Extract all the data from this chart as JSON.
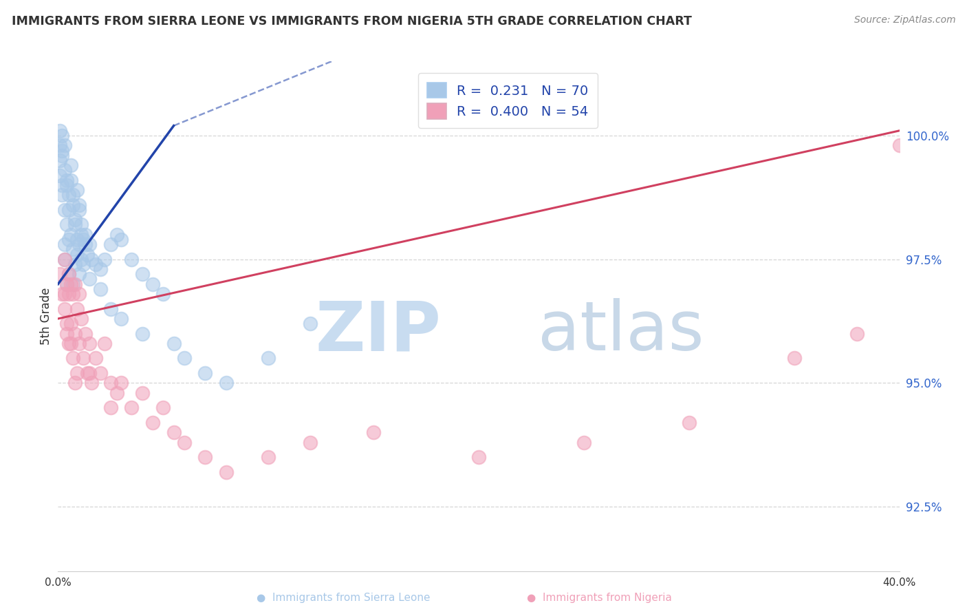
{
  "title": "IMMIGRANTS FROM SIERRA LEONE VS IMMIGRANTS FROM NIGERIA 5TH GRADE CORRELATION CHART",
  "source": "Source: ZipAtlas.com",
  "ylabel": "5th Grade",
  "ytick_values": [
    92.5,
    95.0,
    97.5,
    100.0
  ],
  "xlim": [
    0.0,
    40.0
  ],
  "ylim": [
    91.2,
    101.5
  ],
  "color_blue": "#A8C8E8",
  "color_pink": "#F0A0B8",
  "line_blue": "#2244AA",
  "line_pink": "#D04060",
  "blue_line_x0": 0.0,
  "blue_line_y0": 97.0,
  "blue_line_x1": 5.5,
  "blue_line_y1": 100.2,
  "blue_dash_x1": 13.0,
  "blue_dash_y1": 101.5,
  "pink_line_x0": 0.0,
  "pink_line_y0": 96.3,
  "pink_line_x1": 40.0,
  "pink_line_y1": 100.1,
  "sierra_leone_x": [
    0.1,
    0.1,
    0.1,
    0.2,
    0.2,
    0.2,
    0.2,
    0.3,
    0.3,
    0.3,
    0.3,
    0.4,
    0.4,
    0.4,
    0.5,
    0.5,
    0.5,
    0.6,
    0.6,
    0.7,
    0.7,
    0.7,
    0.8,
    0.8,
    0.9,
    0.9,
    1.0,
    1.0,
    1.0,
    1.1,
    1.1,
    1.2,
    1.3,
    1.4,
    1.5,
    1.6,
    1.8,
    2.0,
    2.2,
    2.5,
    2.8,
    3.0,
    3.5,
    4.0,
    4.5,
    5.0,
    0.1,
    0.2,
    0.3,
    0.4,
    0.5,
    0.6,
    0.7,
    0.8,
    0.9,
    1.0,
    1.1,
    1.2,
    1.3,
    1.5,
    2.0,
    2.5,
    3.0,
    4.0,
    5.5,
    6.0,
    7.0,
    8.0,
    10.0,
    12.0
  ],
  "sierra_leone_y": [
    99.8,
    99.5,
    99.2,
    99.0,
    98.8,
    99.7,
    100.0,
    99.3,
    98.5,
    97.8,
    97.5,
    99.1,
    98.2,
    97.0,
    98.8,
    97.9,
    97.2,
    99.4,
    98.0,
    98.6,
    97.7,
    97.0,
    98.3,
    97.4,
    98.9,
    97.6,
    98.5,
    97.8,
    97.2,
    98.2,
    97.5,
    97.9,
    98.0,
    97.6,
    97.8,
    97.5,
    97.4,
    97.3,
    97.5,
    97.8,
    98.0,
    97.9,
    97.5,
    97.2,
    97.0,
    96.8,
    100.1,
    99.6,
    99.8,
    99.0,
    98.5,
    99.1,
    98.8,
    98.2,
    97.9,
    98.6,
    98.0,
    97.4,
    97.8,
    97.1,
    96.9,
    96.5,
    96.3,
    96.0,
    95.8,
    95.5,
    95.2,
    95.0,
    95.5,
    96.2
  ],
  "nigeria_x": [
    0.1,
    0.2,
    0.3,
    0.3,
    0.4,
    0.4,
    0.5,
    0.5,
    0.5,
    0.6,
    0.6,
    0.7,
    0.7,
    0.8,
    0.8,
    0.9,
    0.9,
    1.0,
    1.0,
    1.1,
    1.2,
    1.3,
    1.4,
    1.5,
    1.6,
    1.8,
    2.0,
    2.2,
    2.5,
    2.8,
    3.0,
    3.5,
    4.0,
    4.5,
    5.0,
    5.5,
    6.0,
    7.0,
    8.0,
    10.0,
    12.0,
    15.0,
    20.0,
    25.0,
    30.0,
    35.0,
    38.0,
    40.0,
    0.3,
    0.4,
    0.6,
    0.8,
    1.5,
    2.5
  ],
  "nigeria_y": [
    97.2,
    96.8,
    97.5,
    96.5,
    97.0,
    96.0,
    97.2,
    96.8,
    95.8,
    97.0,
    96.2,
    96.8,
    95.5,
    97.0,
    96.0,
    96.5,
    95.2,
    96.8,
    95.8,
    96.3,
    95.5,
    96.0,
    95.2,
    95.8,
    95.0,
    95.5,
    95.2,
    95.8,
    95.0,
    94.8,
    95.0,
    94.5,
    94.8,
    94.2,
    94.5,
    94.0,
    93.8,
    93.5,
    93.2,
    93.5,
    93.8,
    94.0,
    93.5,
    93.8,
    94.2,
    95.5,
    96.0,
    99.8,
    96.8,
    96.2,
    95.8,
    95.0,
    95.2,
    94.5
  ]
}
